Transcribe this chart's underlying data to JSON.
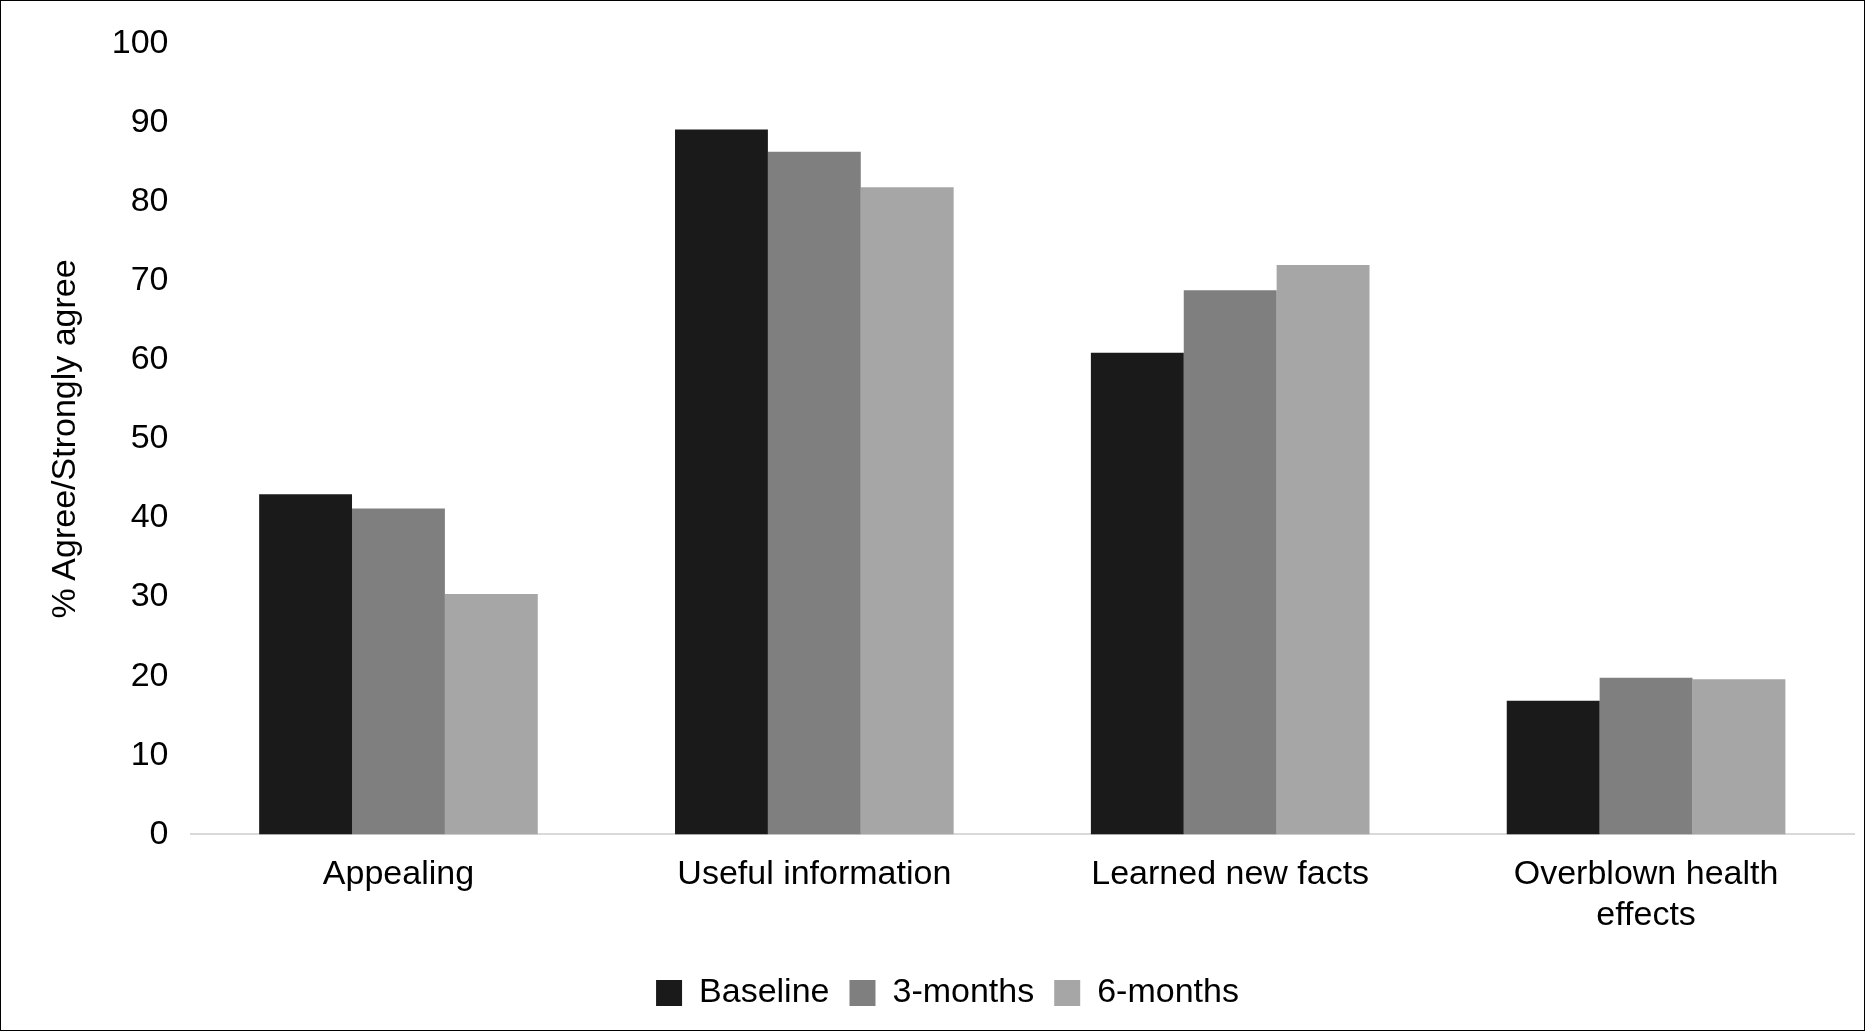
{
  "chart_data": {
    "type": "bar",
    "ylabel": "% Agree/Strongly agree",
    "categories": [
      "Appealing",
      "Useful information",
      "Learned new facts",
      "Overblown health effects"
    ],
    "series": [
      {
        "name": "Baseline",
        "color": "#1a1a1a",
        "values": [
          43.0,
          89.1,
          60.9,
          16.9
        ]
      },
      {
        "name": "3-months",
        "color": "#7f7f7f",
        "values": [
          41.2,
          86.3,
          68.8,
          19.8
        ]
      },
      {
        "name": "6-months",
        "color": "#a6a6a6",
        "values": [
          30.4,
          81.8,
          72.0,
          19.6
        ]
      }
    ],
    "ylim": [
      0,
      100
    ],
    "yticks": [
      0,
      10,
      20,
      30,
      40,
      50,
      60,
      70,
      80,
      90,
      100
    ],
    "grid": false,
    "legend": "bottom"
  }
}
